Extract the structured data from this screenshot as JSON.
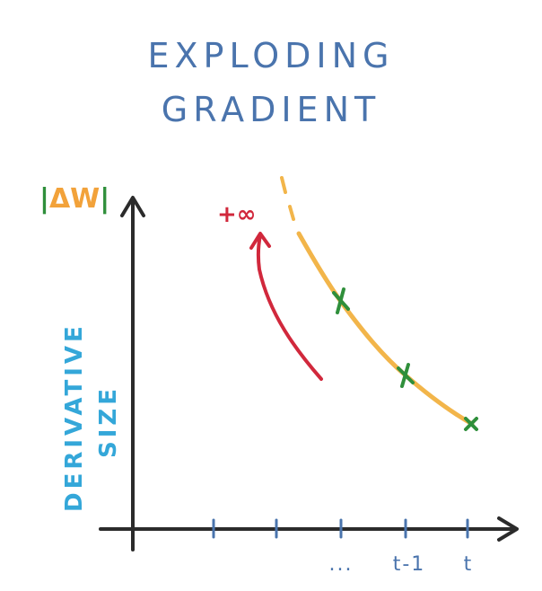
{
  "title_line1": "EXPLODING",
  "title_line2": "GRADIENT",
  "y_symbol_bar_left": "|",
  "y_symbol": "ΔW",
  "y_symbol_bar_right": "|",
  "y_label_line1": "DERIVATIVE",
  "y_label_line2": "SIZE",
  "annotation": "+∞",
  "x_tick_labels": [
    "...",
    "t-1",
    "t"
  ],
  "colors": {
    "title": "#4a74ad",
    "axis": "#2b2b2b",
    "curve": "#f2b54a",
    "marker": "#2f8f3b",
    "arrow": "#d1283c",
    "ylabel": "#34a7d9",
    "tick": "#4a74ad"
  }
}
